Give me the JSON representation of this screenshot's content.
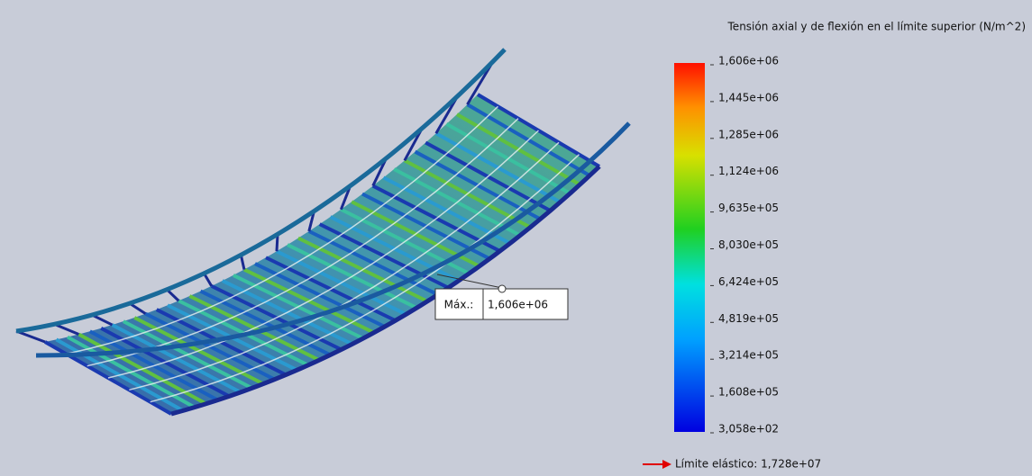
{
  "legend": {
    "title": "Tensión axial y de flexión en el límite superior (N/m^2)",
    "ticks": [
      "1,606e+06",
      "1,445e+06",
      "1,285e+06",
      "1,124e+06",
      "9,635e+05",
      "8,030e+05",
      "6,424e+05",
      "4,819e+05",
      "3,214e+05",
      "1,608e+05",
      "3,058e+02"
    ]
  },
  "annotation": {
    "label": "Máx.:",
    "value": "1,606e+06"
  },
  "yield_limit": "Límite elástico: 1,728e+07"
}
